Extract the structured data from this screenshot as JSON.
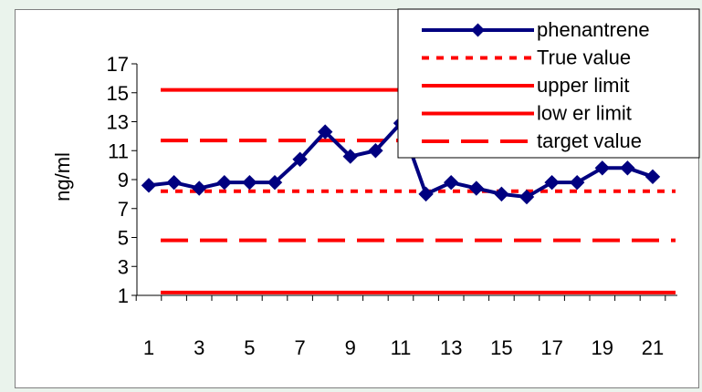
{
  "chart_data": {
    "type": "line",
    "ylabel": "ng/ml",
    "xlabel": "",
    "title": "",
    "x": [
      1,
      2,
      3,
      4,
      5,
      6,
      7,
      8,
      9,
      10,
      11,
      12,
      13,
      14,
      15,
      16,
      17,
      18,
      19,
      20,
      21
    ],
    "x_tick_labels": [
      "1",
      "3",
      "5",
      "7",
      "9",
      "11",
      "13",
      "15",
      "17",
      "19",
      "21"
    ],
    "x_range": [
      1,
      22
    ],
    "ylim": [
      1,
      17
    ],
    "y_ticks": [
      1,
      3,
      5,
      7,
      9,
      11,
      13,
      15,
      17
    ],
    "grid": false,
    "legend_position": "top-right",
    "series": [
      {
        "name": "phenantrene",
        "color": "#000080",
        "style": "line-diamond",
        "values": [
          8.6,
          8.8,
          8.4,
          8.8,
          8.8,
          8.8,
          10.4,
          12.3,
          10.6,
          11.0,
          12.9,
          8.0,
          8.8,
          8.4,
          8.0,
          7.8,
          8.8,
          8.8,
          9.8,
          9.8,
          9.2
        ]
      },
      {
        "name": "True value",
        "color": "#ff0000",
        "style": "dotted",
        "y": 8.2
      },
      {
        "name": "upper limit",
        "color": "#ff0000",
        "style": "solid",
        "y": 15.2
      },
      {
        "name": "low er limit",
        "color": "#ff0000",
        "style": "solid",
        "y": 1.2
      },
      {
        "name": "target value",
        "color": "#ff0000",
        "style": "dashed",
        "y": 11.7
      },
      {
        "name": "target value",
        "color": "#ff0000",
        "style": "dashed",
        "y": 4.8
      }
    ]
  }
}
